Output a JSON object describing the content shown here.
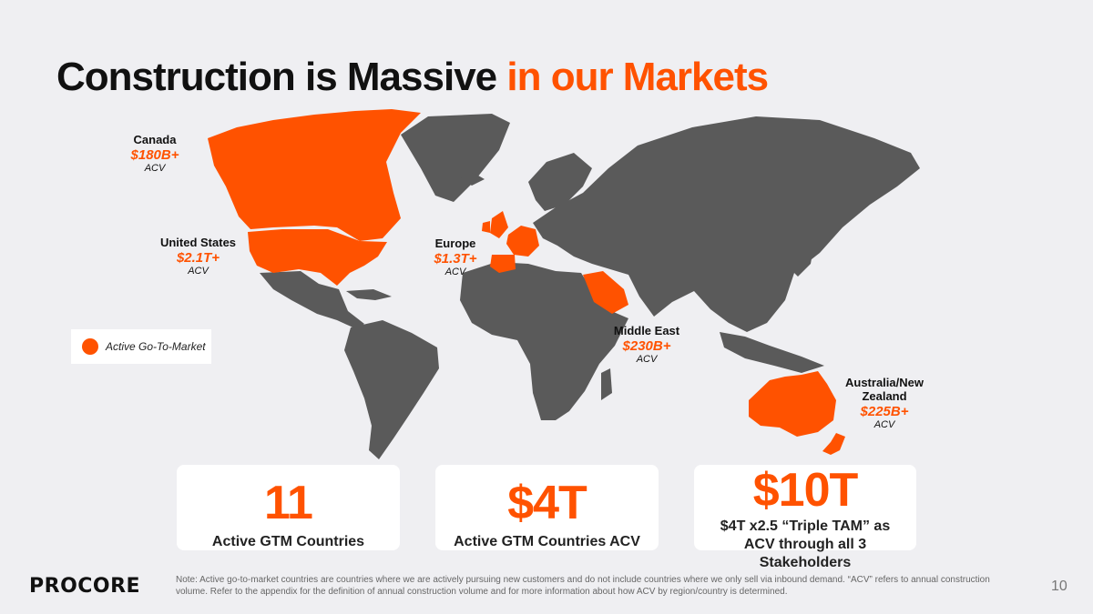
{
  "title": {
    "main": "Construction is Massive",
    "accent": "in our Markets"
  },
  "colors": {
    "accent": "#ff5200",
    "land": "#5a5a5a",
    "background": "#efeff2"
  },
  "regions": [
    {
      "name": "Canada",
      "value": "$180B+",
      "unit": "ACV"
    },
    {
      "name": "United States",
      "value": "$2.1T+",
      "unit": "ACV"
    },
    {
      "name": "Europe",
      "value": "$1.3T+",
      "unit": "ACV"
    },
    {
      "name": "Middle East",
      "value": "$230B+",
      "unit": "ACV"
    },
    {
      "name": "Australia/New Zealand",
      "value": "$225B+",
      "unit": "ACV"
    }
  ],
  "legend": {
    "label": "Active Go-To-Market"
  },
  "stats": [
    {
      "value": "11",
      "label": "Active GTM Countries"
    },
    {
      "value": "$4T",
      "label": "Active GTM Countries ACV"
    },
    {
      "value": "$10T",
      "label": "$4T x2.5 “Triple TAM” as ACV through all 3 Stakeholders"
    }
  ],
  "footer": {
    "logo": "PROCORE",
    "note": "Note: Active go-to-market countries are countries where we are actively pursuing new customers and do not include countries where we only sell via inbound demand. “ACV” refers to annual construction volume. Refer to the appendix for the definition of annual construction volume and for more information about how ACV by region/country is determined.",
    "page_number": "10"
  }
}
